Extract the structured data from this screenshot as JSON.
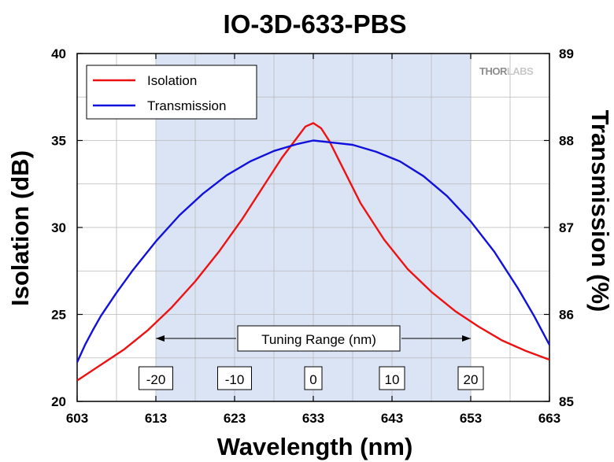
{
  "chart_data": {
    "type": "line",
    "title": "IO-3D-633-PBS",
    "xlabel": "Wavelength (nm)",
    "ylabel": "Isolation (dB)",
    "y2label": "Transmission (%)",
    "xlim": [
      603,
      663
    ],
    "ylim": [
      20,
      40
    ],
    "y2lim": [
      85,
      89
    ],
    "xticks": [
      603,
      613,
      623,
      633,
      643,
      653,
      663
    ],
    "yticks": [
      20,
      25,
      30,
      35,
      40
    ],
    "y2ticks": [
      85,
      86,
      87,
      88,
      89
    ],
    "grid": true,
    "shaded_range": [
      613,
      653
    ],
    "shaded_color": "#dbe4f5",
    "legend_position": "top-left",
    "series": [
      {
        "name": "Isolation",
        "axis": "left",
        "color": "#ee1111",
        "x": [
          603,
          606,
          609,
          612,
          615,
          618,
          621,
          624,
          627,
          629,
          631,
          632,
          633,
          634,
          635,
          637,
          639,
          642,
          645,
          648,
          651,
          654,
          657,
          660,
          663
        ],
        "y": [
          21.2,
          22.1,
          23.0,
          24.1,
          25.4,
          26.9,
          28.6,
          30.5,
          32.6,
          34.0,
          35.2,
          35.8,
          36.0,
          35.7,
          35.0,
          33.2,
          31.4,
          29.3,
          27.6,
          26.3,
          25.2,
          24.3,
          23.5,
          22.9,
          22.4
        ]
      },
      {
        "name": "Transmission",
        "axis": "right",
        "color": "#1111dd",
        "x": [
          603,
          604,
          605,
          606,
          608,
          610,
          613,
          616,
          619,
          622,
          625,
          628,
          631,
          633,
          635,
          638,
          641,
          644,
          647,
          650,
          653,
          656,
          659,
          661,
          663
        ],
        "y": [
          85.45,
          85.65,
          85.82,
          85.98,
          86.25,
          86.5,
          86.84,
          87.14,
          87.39,
          87.6,
          87.76,
          87.88,
          87.96,
          88.0,
          87.98,
          87.95,
          87.87,
          87.76,
          87.59,
          87.36,
          87.07,
          86.72,
          86.3,
          85.99,
          85.65
        ]
      }
    ],
    "annotations": {
      "tuning_range": "Tuning Range (nm)",
      "range_labels": [
        {
          "x": 613,
          "text": "-20"
        },
        {
          "x": 623,
          "text": "-10"
        },
        {
          "x": 633,
          "text": "0"
        },
        {
          "x": 643,
          "text": "10"
        },
        {
          "x": 653,
          "text": "20"
        }
      ]
    }
  },
  "logo": {
    "part1": "THOR",
    "part2": "LABS"
  }
}
